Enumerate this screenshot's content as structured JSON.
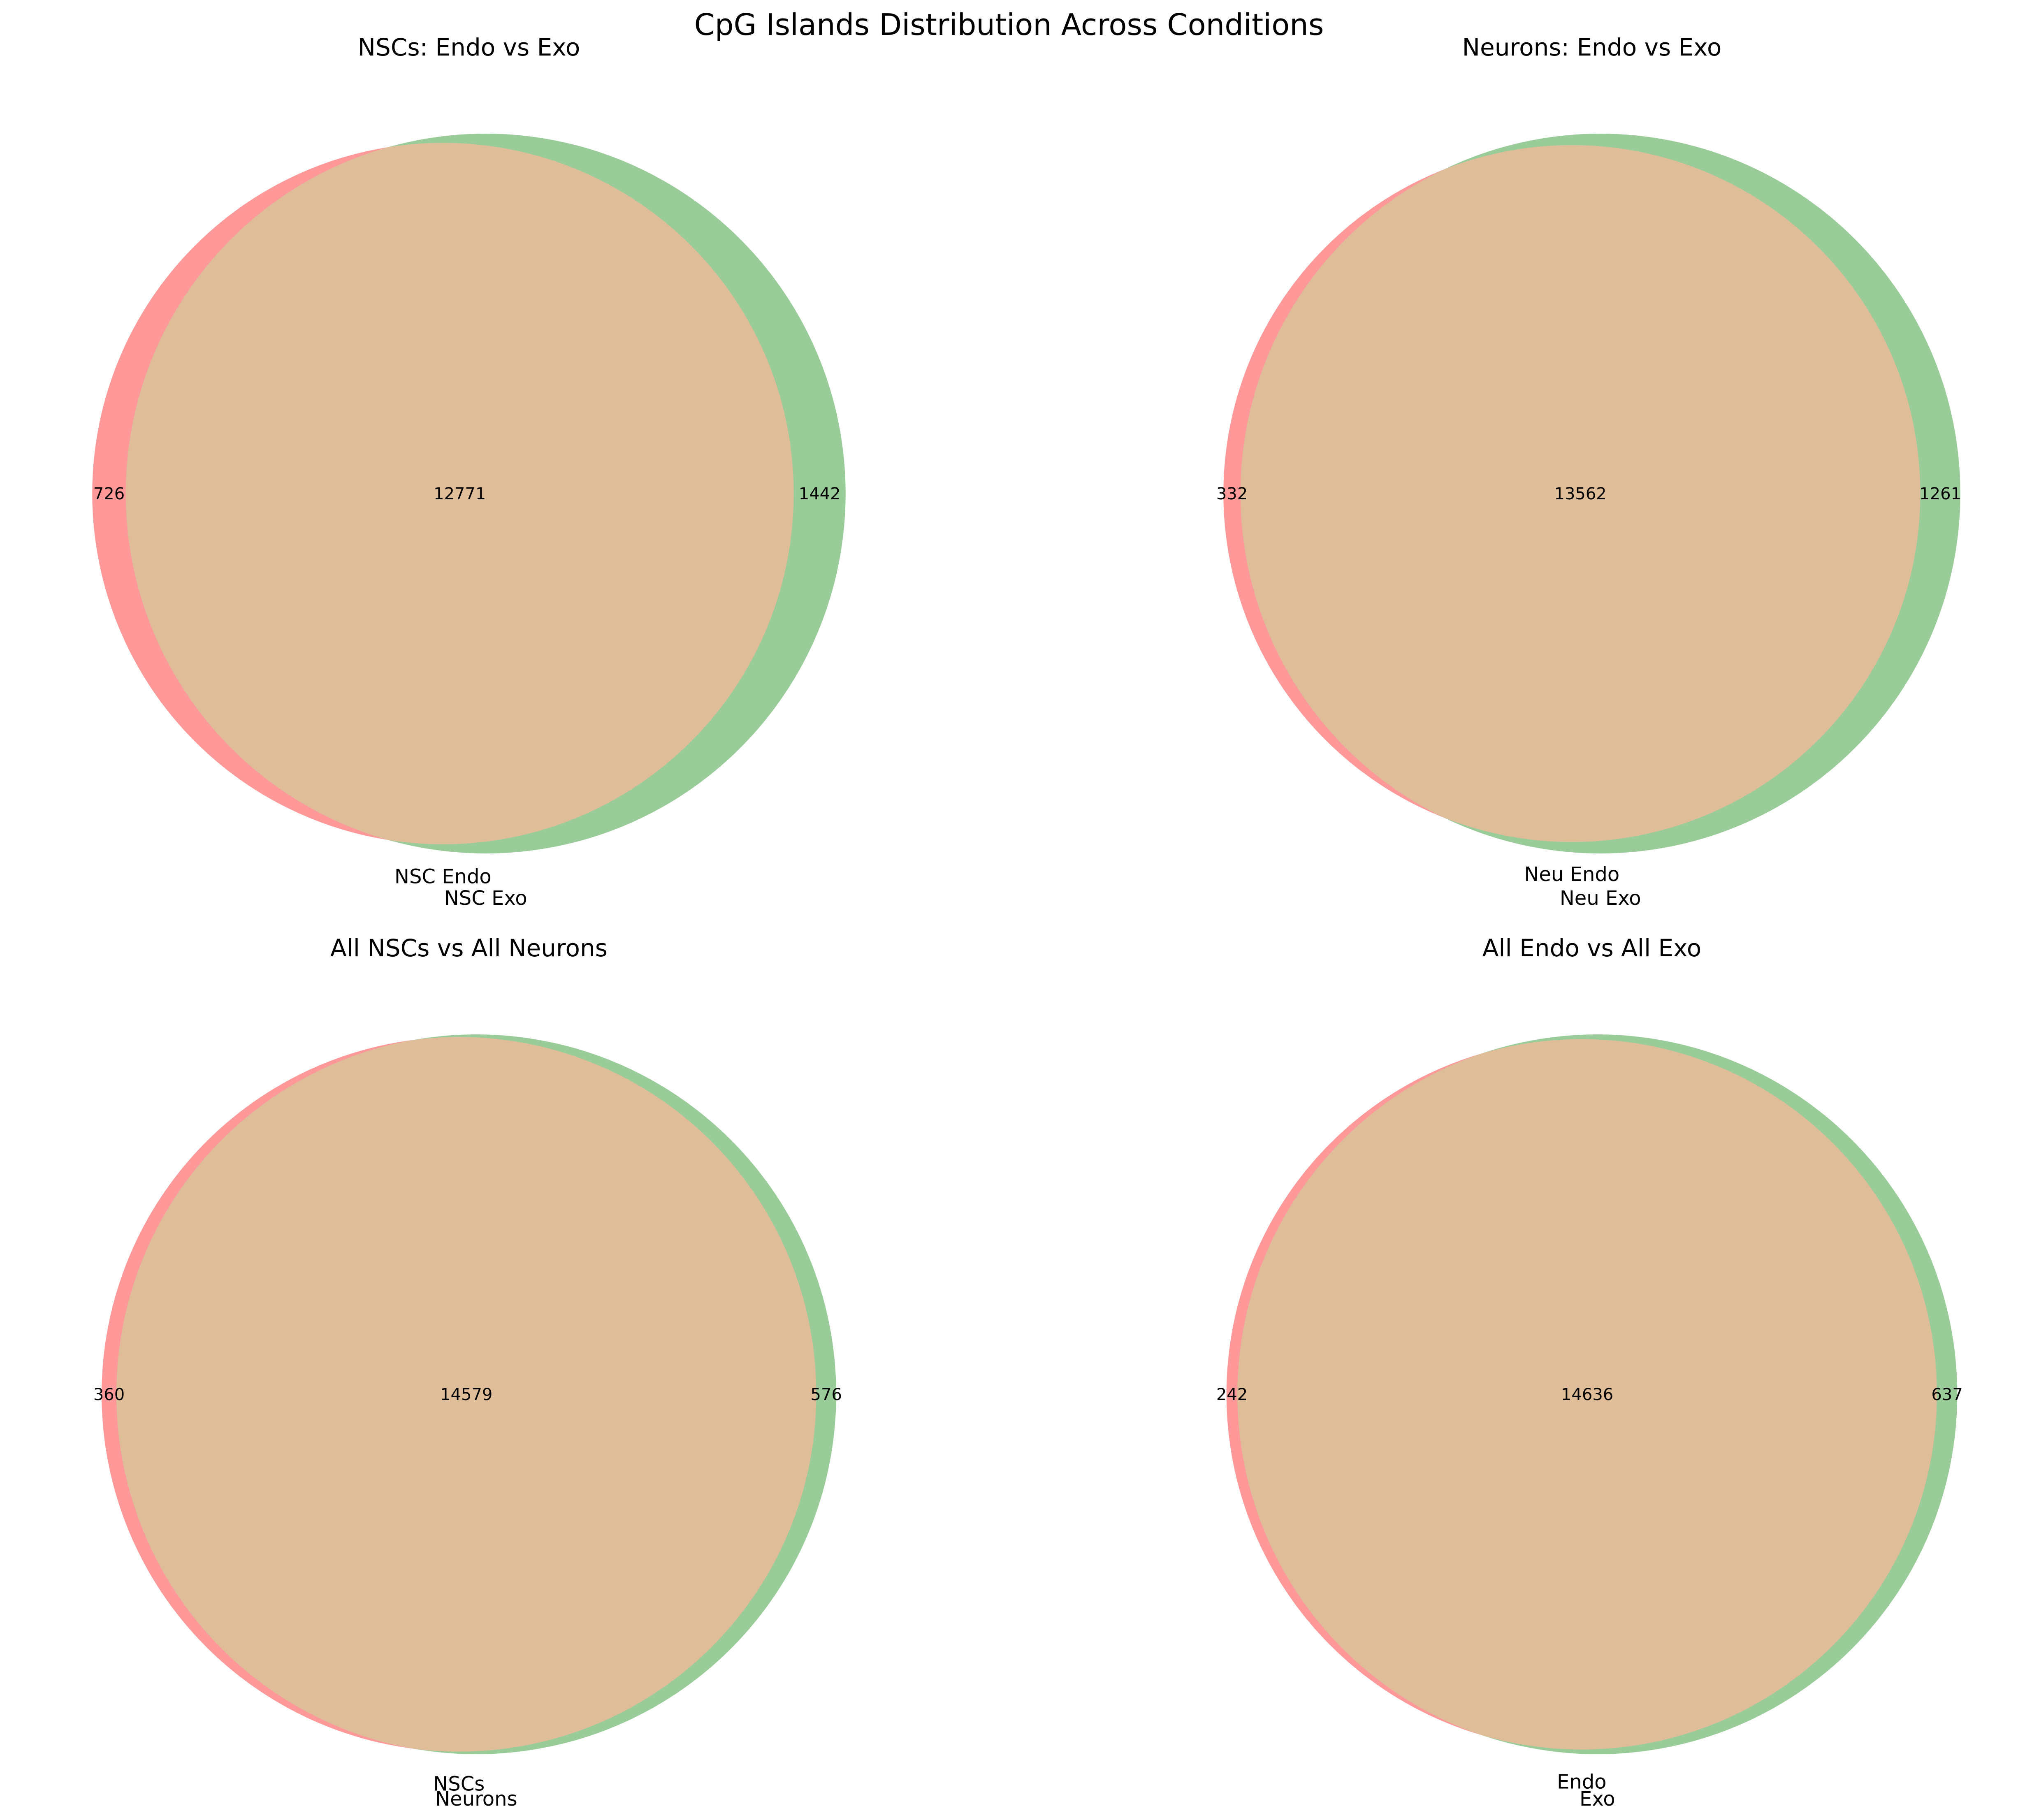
{
  "figure": {
    "title": "CpG Islands Distribution Across Conditions",
    "background": "#ffffff"
  },
  "colors": {
    "left_only": "#ff9999",
    "right_only": "#99cc99",
    "overlap": "#e0bd99"
  },
  "chart_data": [
    {
      "type": "venn2",
      "title": "NSCs: Endo vs Exo",
      "set_labels": [
        "NSC Endo",
        "NSC Exo"
      ],
      "left_only": 726,
      "overlap": 12771,
      "right_only": 1442
    },
    {
      "type": "venn2",
      "title": "Neurons: Endo vs Exo",
      "set_labels": [
        "Neu Endo",
        "Neu Exo"
      ],
      "left_only": 332,
      "overlap": 13562,
      "right_only": 1261
    },
    {
      "type": "venn2",
      "title": "All NSCs vs All Neurons",
      "set_labels": [
        "NSCs",
        "Neurons"
      ],
      "left_only": 360,
      "overlap": 14579,
      "right_only": 576
    },
    {
      "type": "venn2",
      "title": "All Endo vs All Exo",
      "set_labels": [
        "Endo",
        "Exo"
      ],
      "left_only": 242,
      "overlap": 14636,
      "right_only": 637
    }
  ]
}
